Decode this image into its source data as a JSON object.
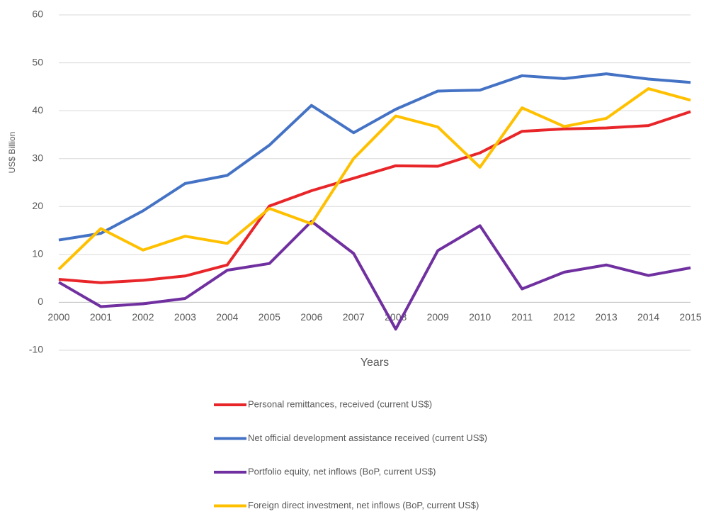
{
  "chart_data": {
    "type": "line",
    "y_label": "US$ Billion",
    "x_label": "Years",
    "categories": [
      "2000",
      "2001",
      "2002",
      "2003",
      "2004",
      "2005",
      "2006",
      "2007",
      "2008",
      "2009",
      "2010",
      "2011",
      "2012",
      "2013",
      "2014",
      "2015"
    ],
    "ylim": [
      -10,
      60
    ],
    "yticks": [
      -10,
      0,
      10,
      20,
      30,
      40,
      50,
      60
    ],
    "grid": true,
    "legend": "bottom",
    "series": [
      {
        "name": "Personal remittances, received (current US$)",
        "color": "#e8262a",
        "values": [
          4.8,
          4.1,
          4.6,
          5.5,
          7.8,
          20.1,
          23.3,
          25.9,
          28.5,
          28.4,
          31.2,
          35.7,
          36.2,
          36.4,
          36.9,
          39.8
        ]
      },
      {
        "name": "Net official development assistance received (current US$)",
        "color": "#4472c4",
        "values": [
          13.0,
          14.4,
          19.1,
          24.8,
          26.5,
          32.8,
          41.1,
          35.4,
          40.3,
          44.1,
          44.3,
          47.3,
          46.7,
          47.7,
          46.6,
          45.9
        ]
      },
      {
        "name": "Portfolio equity, net inflows (BoP, current US$)",
        "color": "#7030a0",
        "values": [
          4.2,
          -0.9,
          -0.3,
          0.8,
          6.7,
          8.1,
          16.9,
          10.2,
          -5.6,
          10.8,
          16.0,
          2.8,
          6.3,
          7.8,
          5.6,
          7.2
        ]
      },
      {
        "name": "Foreign direct investment, net inflows (BoP, current US$)",
        "color": "#ffc000",
        "values": [
          6.9,
          15.4,
          10.9,
          13.8,
          12.3,
          19.6,
          16.4,
          30.0,
          38.9,
          36.6,
          28.2,
          40.6,
          36.7,
          38.4,
          44.6,
          42.2
        ]
      }
    ]
  }
}
